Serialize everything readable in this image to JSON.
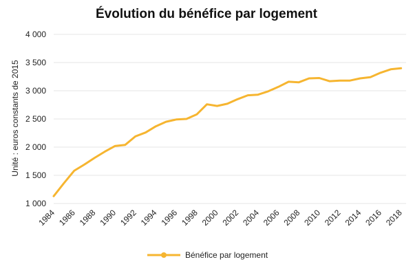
{
  "chart_data": {
    "type": "line",
    "title": "Évolution du bénéfice par logement",
    "xlabel": "",
    "ylabel": "Unité : euros constants de 2015",
    "ylim": [
      1000,
      4000
    ],
    "yticks": [
      "1 000",
      "1 500",
      "2 000",
      "2 500",
      "3 000",
      "3 500",
      "4 000"
    ],
    "xticks": [
      "1984",
      "1986",
      "1988",
      "1990",
      "1992",
      "1994",
      "1996",
      "1998",
      "2000",
      "2002",
      "2004",
      "2006",
      "2008",
      "2010",
      "2012",
      "2014",
      "2016",
      "2018"
    ],
    "grid": "horizontal",
    "legend_position": "bottom",
    "x": [
      1984,
      1985,
      1986,
      1987,
      1988,
      1989,
      1990,
      1991,
      1992,
      1993,
      1994,
      1995,
      1996,
      1997,
      1998,
      1999,
      2000,
      2001,
      2002,
      2003,
      2004,
      2005,
      2006,
      2007,
      2008,
      2009,
      2010,
      2011,
      2012,
      2013,
      2014,
      2015,
      2016,
      2017,
      2018
    ],
    "series": [
      {
        "name": "Bénéfice par logement",
        "color": "#f6b530",
        "values": [
          1130,
          1360,
          1580,
          1690,
          1810,
          1920,
          2020,
          2040,
          2190,
          2260,
          2370,
          2450,
          2490,
          2500,
          2580,
          2760,
          2730,
          2770,
          2850,
          2920,
          2930,
          2990,
          3070,
          3160,
          3150,
          3220,
          3225,
          3170,
          3180,
          3180,
          3220,
          3240,
          3320,
          3380,
          3400
        ]
      }
    ]
  }
}
